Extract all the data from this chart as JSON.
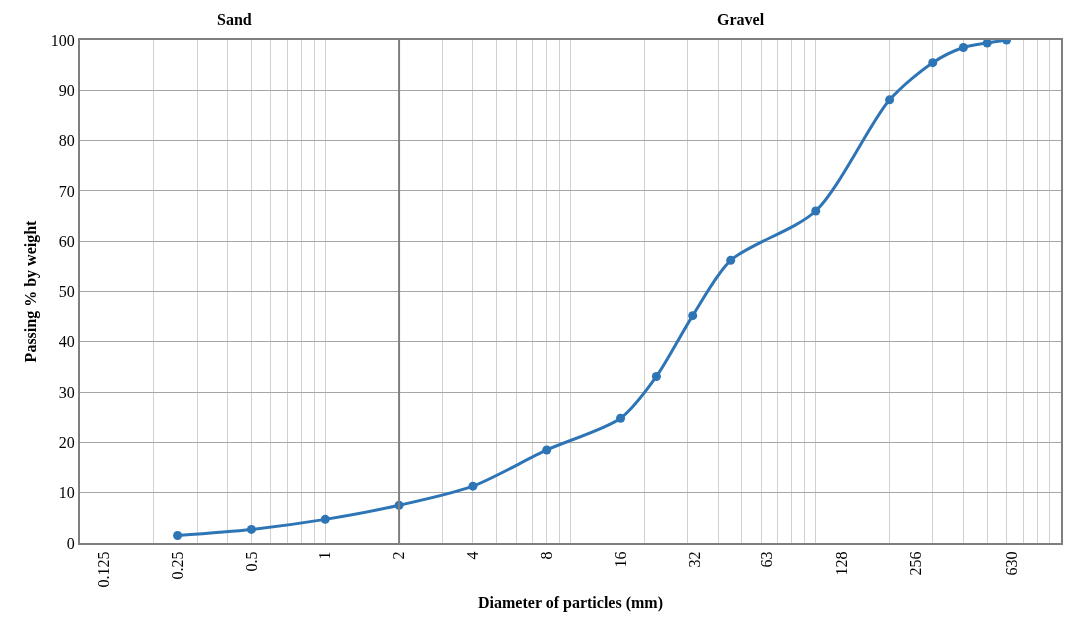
{
  "chart_data": {
    "type": "line",
    "xlabel": "Diameter of particles (mm)",
    "ylabel": "Passing % by weight",
    "x": [
      0.25,
      0.5,
      1,
      2,
      4,
      8,
      16,
      22.4,
      31.5,
      45,
      100,
      200,
      300,
      400,
      500,
      600
    ],
    "series": [
      {
        "color": "#2e75b6",
        "values": [
          1.5,
          2.7,
          4.7,
          7.5,
          11.3,
          18.5,
          24.8,
          33.1,
          45.2,
          56.2,
          66.0,
          88.1,
          95.5,
          98.5,
          99.4,
          100
        ]
      }
    ],
    "log": "x",
    "xlim": [
      0.1,
      1000
    ],
    "ylim": [
      0,
      100
    ],
    "xticks": [
      0.125,
      0.25,
      0.5,
      1,
      2,
      4,
      8,
      16,
      32,
      63,
      128,
      256,
      630
    ],
    "yticks": [
      0,
      10,
      20,
      30,
      40,
      50,
      60,
      70,
      80,
      90,
      100
    ],
    "grid": true,
    "marker": "circle",
    "line_style": "solid",
    "ref_lines": [
      {
        "axis": "x",
        "value": 2,
        "color": "#7f7f7f"
      }
    ],
    "annotations": [
      "Sand",
      "Gravel"
    ]
  }
}
